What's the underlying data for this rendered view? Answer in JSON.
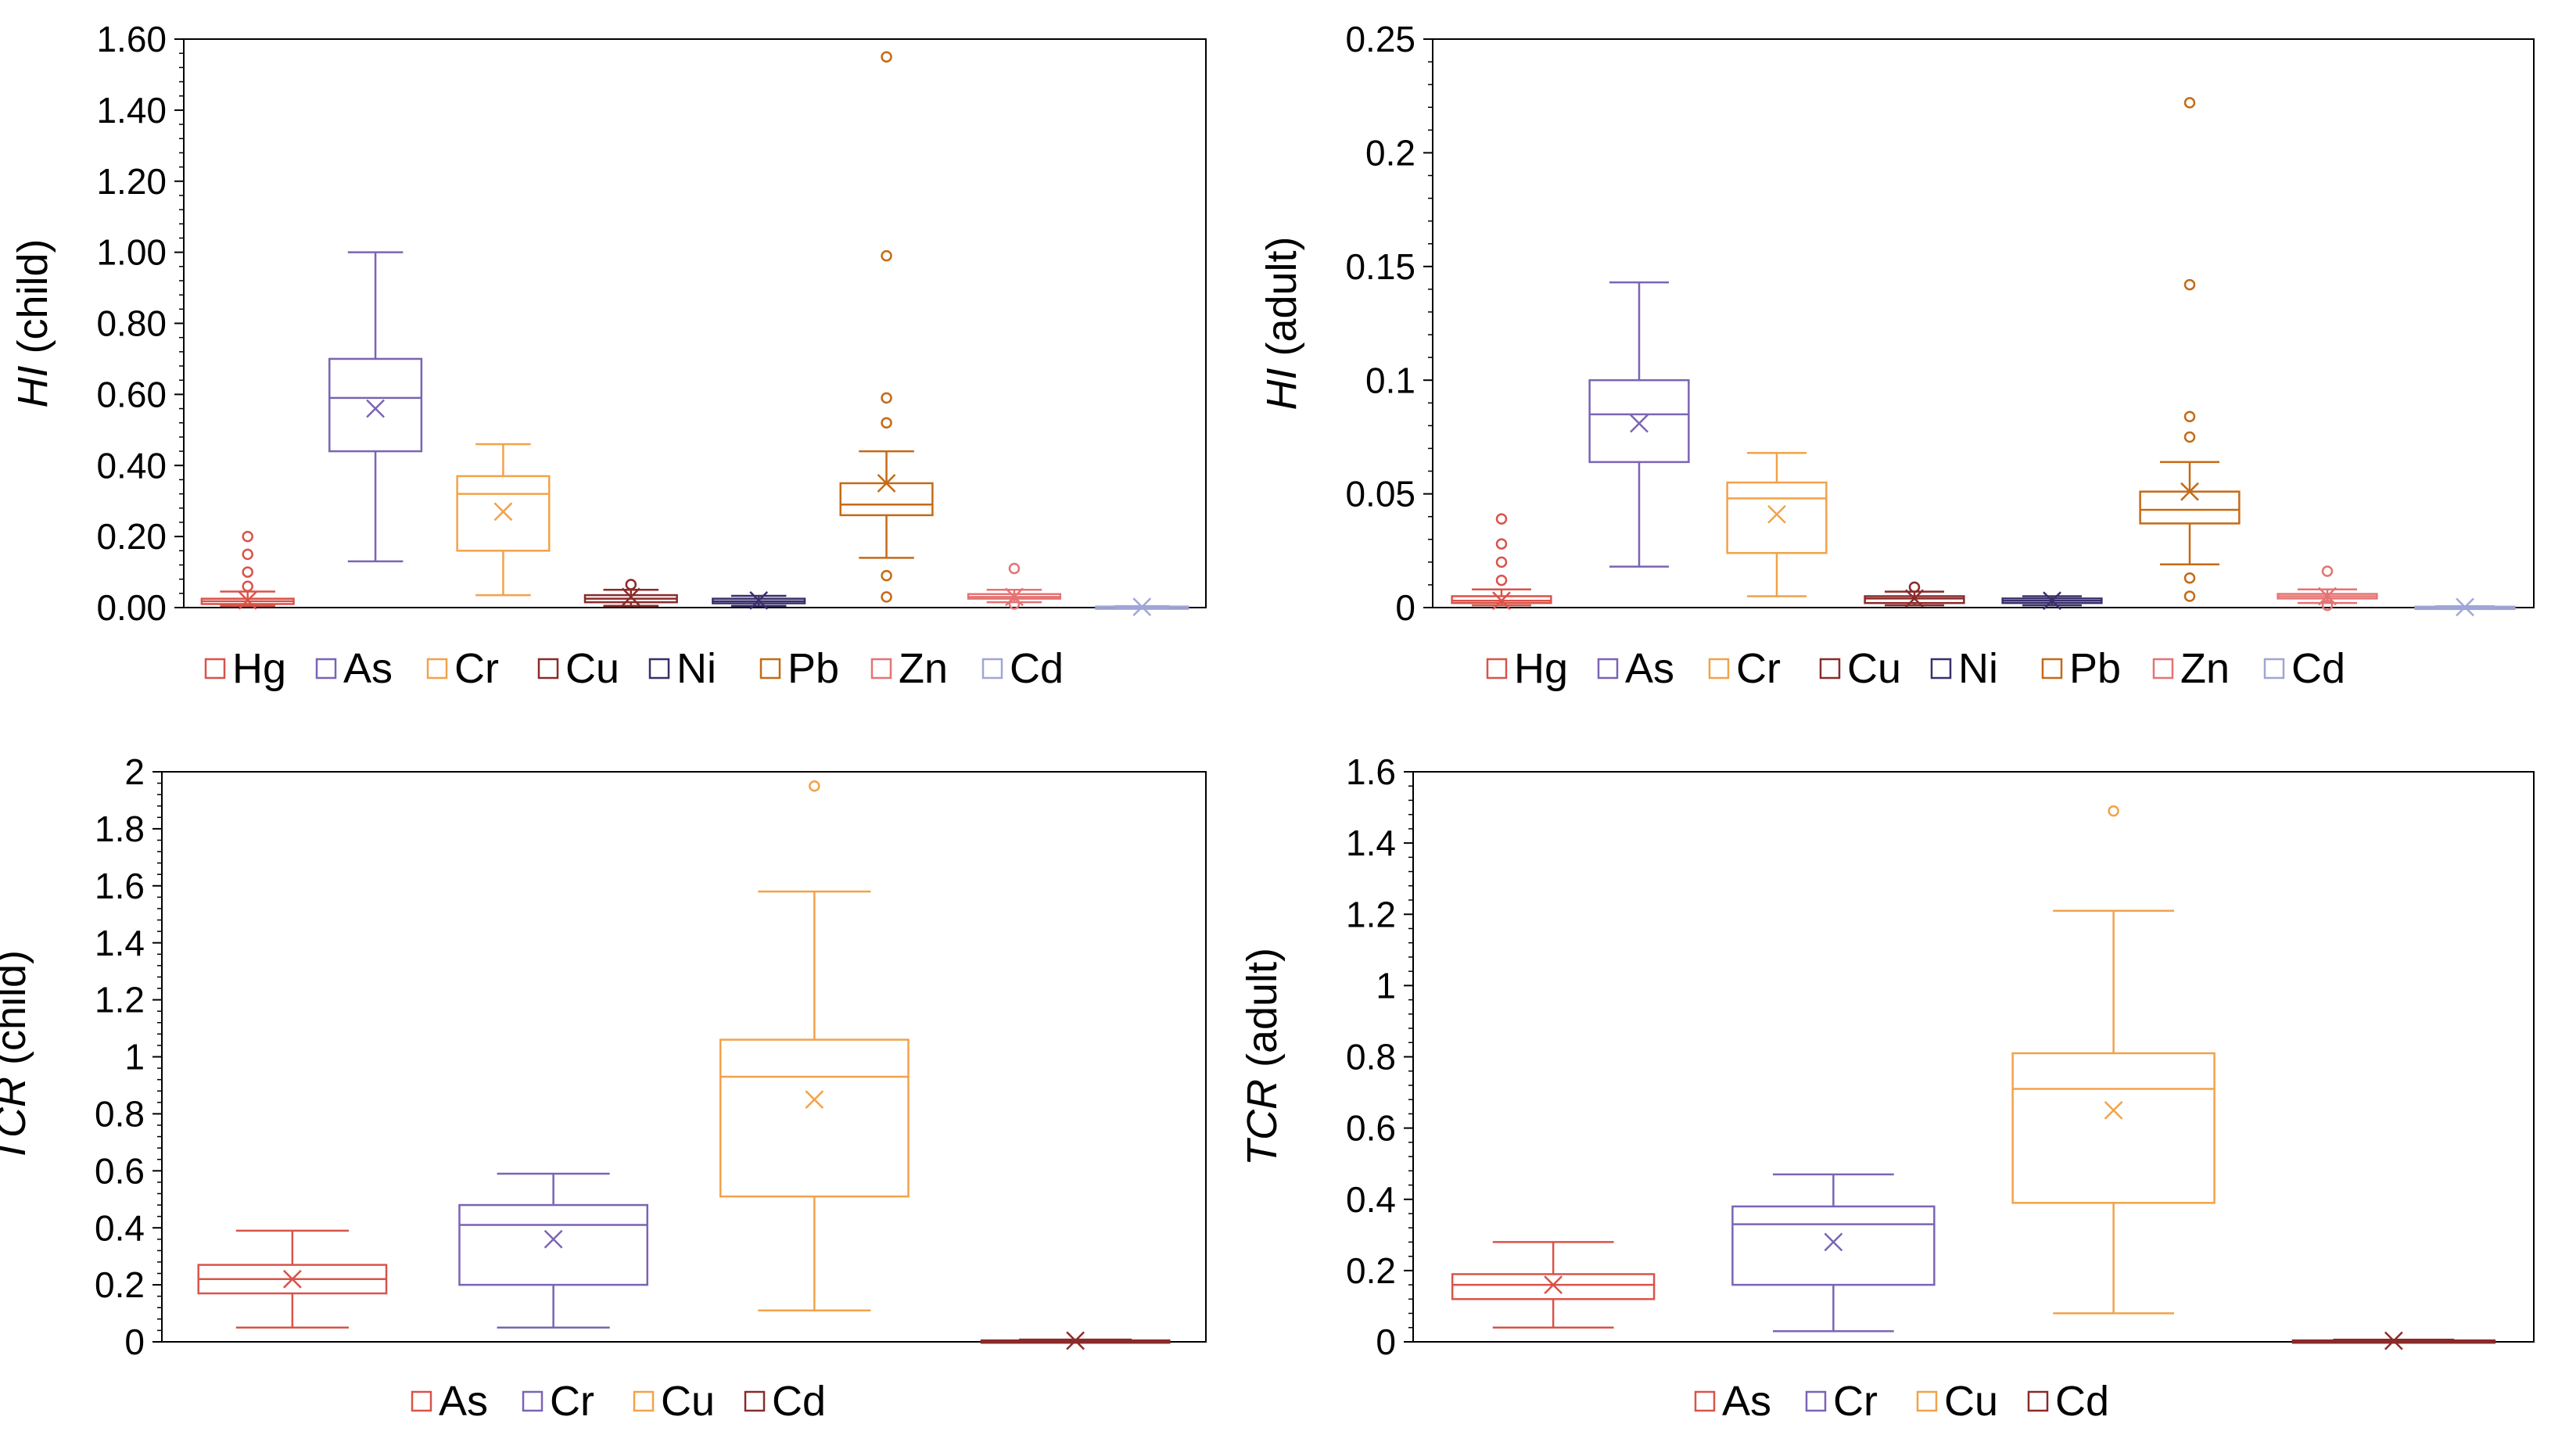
{
  "chart_data": [
    {
      "type": "box",
      "ylabel": {
        "symbol": "HI",
        "rest": " (child)"
      },
      "ylim": [
        0,
        1.6
      ],
      "ticks": [
        "0.00",
        "0.20",
        "0.40",
        "0.60",
        "0.80",
        "1.00",
        "1.20",
        "1.40",
        "1.60"
      ],
      "series": [
        {
          "name": "Hg",
          "color": "#d9534a",
          "min": 0.005,
          "q1": 0.01,
          "median": 0.018,
          "q3": 0.025,
          "max": 0.045,
          "mean": 0.02,
          "outliers": [
            0.06,
            0.1,
            0.15,
            0.2
          ]
        },
        {
          "name": "As",
          "color": "#7a64b5",
          "min": 0.13,
          "q1": 0.44,
          "median": 0.59,
          "q3": 0.7,
          "max": 1.0,
          "mean": 0.56,
          "outliers": []
        },
        {
          "name": "Cr",
          "color": "#f2a24a",
          "min": 0.035,
          "q1": 0.16,
          "median": 0.32,
          "q3": 0.37,
          "max": 0.46,
          "mean": 0.27,
          "outliers": []
        },
        {
          "name": "Cu",
          "color": "#8b2a2a",
          "min": 0.005,
          "q1": 0.015,
          "median": 0.025,
          "q3": 0.035,
          "max": 0.05,
          "mean": 0.03,
          "outliers": [
            0.065
          ]
        },
        {
          "name": "Ni",
          "color": "#3a2f6b",
          "min": 0.005,
          "q1": 0.012,
          "median": 0.018,
          "q3": 0.025,
          "max": 0.033,
          "mean": 0.02,
          "outliers": []
        },
        {
          "name": "Pb",
          "color": "#c56a16",
          "min": 0.14,
          "q1": 0.26,
          "median": 0.29,
          "q3": 0.35,
          "max": 0.44,
          "mean": 0.35,
          "outliers": [
            0.03,
            0.09,
            0.52,
            0.59,
            0.99,
            1.55
          ]
        },
        {
          "name": "Zn",
          "color": "#e57373",
          "min": 0.015,
          "q1": 0.025,
          "median": 0.03,
          "q3": 0.038,
          "max": 0.05,
          "mean": 0.03,
          "outliers": [
            0.01,
            0.11
          ]
        },
        {
          "name": "Cd",
          "color": "#9fa6d6",
          "min": 0.0,
          "q1": 0.001,
          "median": 0.002,
          "q3": 0.003,
          "max": 0.004,
          "mean": 0.002,
          "outliers": []
        }
      ]
    },
    {
      "type": "box",
      "ylabel": {
        "symbol": "HI",
        "rest": " (adult)"
      },
      "ylim": [
        0,
        0.25
      ],
      "ticks": [
        "0",
        "0.05",
        "0.1",
        "0.15",
        "0.2",
        "0.25"
      ],
      "series": [
        {
          "name": "Hg",
          "color": "#d9534a",
          "min": 0.001,
          "q1": 0.002,
          "median": 0.003,
          "q3": 0.005,
          "max": 0.008,
          "mean": 0.003,
          "outliers": [
            0.012,
            0.02,
            0.028,
            0.039
          ]
        },
        {
          "name": "As",
          "color": "#7a64b5",
          "min": 0.018,
          "q1": 0.064,
          "median": 0.085,
          "q3": 0.1,
          "max": 0.143,
          "mean": 0.081,
          "outliers": []
        },
        {
          "name": "Cr",
          "color": "#f2a24a",
          "min": 0.005,
          "q1": 0.024,
          "median": 0.048,
          "q3": 0.055,
          "max": 0.068,
          "mean": 0.041,
          "outliers": []
        },
        {
          "name": "Cu",
          "color": "#8b2a2a",
          "min": 0.001,
          "q1": 0.002,
          "median": 0.004,
          "q3": 0.005,
          "max": 0.007,
          "mean": 0.004,
          "outliers": [
            0.009
          ]
        },
        {
          "name": "Ni",
          "color": "#3a2f6b",
          "min": 0.001,
          "q1": 0.002,
          "median": 0.003,
          "q3": 0.004,
          "max": 0.005,
          "mean": 0.003,
          "outliers": []
        },
        {
          "name": "Pb",
          "color": "#c56a16",
          "min": 0.019,
          "q1": 0.037,
          "median": 0.043,
          "q3": 0.051,
          "max": 0.064,
          "mean": 0.051,
          "outliers": [
            0.005,
            0.013,
            0.075,
            0.084,
            0.142,
            0.222
          ]
        },
        {
          "name": "Zn",
          "color": "#e57373",
          "min": 0.002,
          "q1": 0.004,
          "median": 0.005,
          "q3": 0.006,
          "max": 0.008,
          "mean": 0.005,
          "outliers": [
            0.001,
            0.016
          ]
        },
        {
          "name": "Cd",
          "color": "#9fa6d6",
          "min": 0.0,
          "q1": 0.0001,
          "median": 0.0002,
          "q3": 0.0004,
          "max": 0.0006,
          "mean": 0.0002,
          "outliers": []
        }
      ]
    },
    {
      "type": "box",
      "ylabel": {
        "symbol": "TCR",
        "rest": " (child)"
      },
      "ylim": [
        0,
        2
      ],
      "ticks": [
        "0",
        "0.2",
        "0.4",
        "0.6",
        "0.8",
        "1",
        "1.2",
        "1.4",
        "1.6",
        "1.8",
        "2"
      ],
      "series": [
        {
          "name": "As",
          "color": "#d9534a",
          "min": 0.05,
          "q1": 0.17,
          "median": 0.22,
          "q3": 0.27,
          "max": 0.39,
          "mean": 0.22,
          "outliers": []
        },
        {
          "name": "Cr",
          "color": "#7a64b5",
          "min": 0.05,
          "q1": 0.2,
          "median": 0.41,
          "q3": 0.48,
          "max": 0.59,
          "mean": 0.36,
          "outliers": []
        },
        {
          "name": "Cu",
          "color": "#f2a24a",
          "min": 0.11,
          "q1": 0.51,
          "median": 0.93,
          "q3": 1.06,
          "max": 1.58,
          "mean": 0.85,
          "outliers": [
            1.95
          ]
        },
        {
          "name": "Cd",
          "color": "#8b2a2a",
          "min": 0.0,
          "q1": 0.001,
          "median": 0.003,
          "q3": 0.005,
          "max": 0.008,
          "mean": 0.004,
          "outliers": []
        }
      ]
    },
    {
      "type": "box",
      "ylabel": {
        "symbol": "TCR",
        "rest": " (adult)"
      },
      "ylim": [
        0,
        1.6
      ],
      "ticks": [
        "0",
        "0.2",
        "0.4",
        "0.6",
        "0.8",
        "1",
        "1.2",
        "1.4",
        "1.6"
      ],
      "series": [
        {
          "name": "As",
          "color": "#d9534a",
          "min": 0.04,
          "q1": 0.12,
          "median": 0.16,
          "q3": 0.19,
          "max": 0.28,
          "mean": 0.16,
          "outliers": []
        },
        {
          "name": "Cr",
          "color": "#7a64b5",
          "min": 0.03,
          "q1": 0.16,
          "median": 0.33,
          "q3": 0.38,
          "max": 0.47,
          "mean": 0.28,
          "outliers": []
        },
        {
          "name": "Cu",
          "color": "#f2a24a",
          "min": 0.08,
          "q1": 0.39,
          "median": 0.71,
          "q3": 0.81,
          "max": 1.21,
          "mean": 0.65,
          "outliers": [
            1.49
          ]
        },
        {
          "name": "Cd",
          "color": "#8b2a2a",
          "min": 0.0,
          "q1": 0.001,
          "median": 0.002,
          "q3": 0.004,
          "max": 0.006,
          "mean": 0.003,
          "outliers": []
        }
      ]
    }
  ]
}
